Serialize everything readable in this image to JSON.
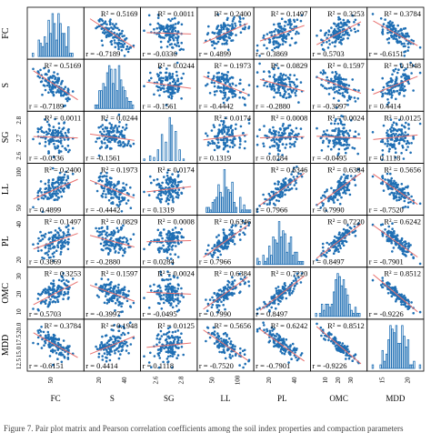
{
  "chart_data": {
    "type": "scatter",
    "subtype": "pair-plot matrix with histograms on diagonal",
    "variables": [
      "FC",
      "S",
      "SG",
      "LL",
      "PL",
      "OMC",
      "MDD"
    ],
    "point_color": "#1f6fb4",
    "fit_line_color": "#e8716f",
    "hist_color": "#1f6fb4",
    "r": [
      [
        null,
        -0.7189,
        -0.0336,
        0.4899,
        0.3869,
        0.5703,
        -0.6151
      ],
      [
        -0.7189,
        null,
        -0.1561,
        -0.4442,
        -0.288,
        -0.3997,
        0.4414
      ],
      [
        -0.0336,
        -0.1561,
        null,
        0.1319,
        0.0284,
        -0.0495,
        0.1118
      ],
      [
        0.4899,
        -0.4442,
        0.1319,
        null,
        0.7966,
        0.799,
        -0.752
      ],
      [
        0.3869,
        -0.288,
        0.0284,
        0.7966,
        null,
        0.8497,
        -0.7901
      ],
      [
        0.5703,
        -0.3997,
        -0.0495,
        0.799,
        0.8497,
        null,
        -0.9226
      ],
      [
        -0.6151,
        0.4414,
        0.1118,
        -0.752,
        -0.7901,
        -0.9226,
        null
      ]
    ],
    "r2": [
      [
        null,
        0.5169,
        0.0011,
        0.24,
        0.1497,
        0.3253,
        0.3784
      ],
      [
        0.5169,
        null,
        0.0244,
        0.1973,
        0.0829,
        0.1597,
        0.1948
      ],
      [
        0.0011,
        0.0244,
        null,
        0.0174,
        0.0008,
        0.0024,
        0.0125
      ],
      [
        0.24,
        0.1973,
        0.0174,
        null,
        0.6346,
        0.6384,
        0.5656
      ],
      [
        0.1497,
        0.0829,
        0.0008,
        0.6346,
        null,
        0.722,
        0.6242
      ],
      [
        0.3253,
        0.1597,
        0.0024,
        0.6384,
        0.722,
        null,
        0.8512
      ],
      [
        0.3784,
        0.1948,
        0.0125,
        0.5656,
        0.6242,
        0.8512,
        null
      ]
    ],
    "r2_label": "R² = ",
    "r_label": "r = ",
    "x_ticks": [
      [
        "50"
      ],
      [
        "20",
        "40"
      ],
      [
        "2.6",
        "2.8"
      ],
      [
        "50",
        "100"
      ],
      [
        "20",
        "40"
      ],
      [
        "10",
        "20",
        "30"
      ],
      [
        "15",
        "20"
      ]
    ],
    "y_ticks": {
      "SG": [
        "2.8",
        "2.7",
        "2.6"
      ],
      "LL": [
        "100",
        "50"
      ],
      "PL": [
        "40",
        "20"
      ],
      "OMC": [
        "30",
        "20",
        "10"
      ],
      "MDD": [
        "20.0",
        "17.5",
        "15.0",
        "12.5"
      ]
    },
    "n_points": 120
  },
  "caption": "Figure 7. Pair plot matrix and Pearson correlation coefficients among the soil index properties and compaction parameters"
}
